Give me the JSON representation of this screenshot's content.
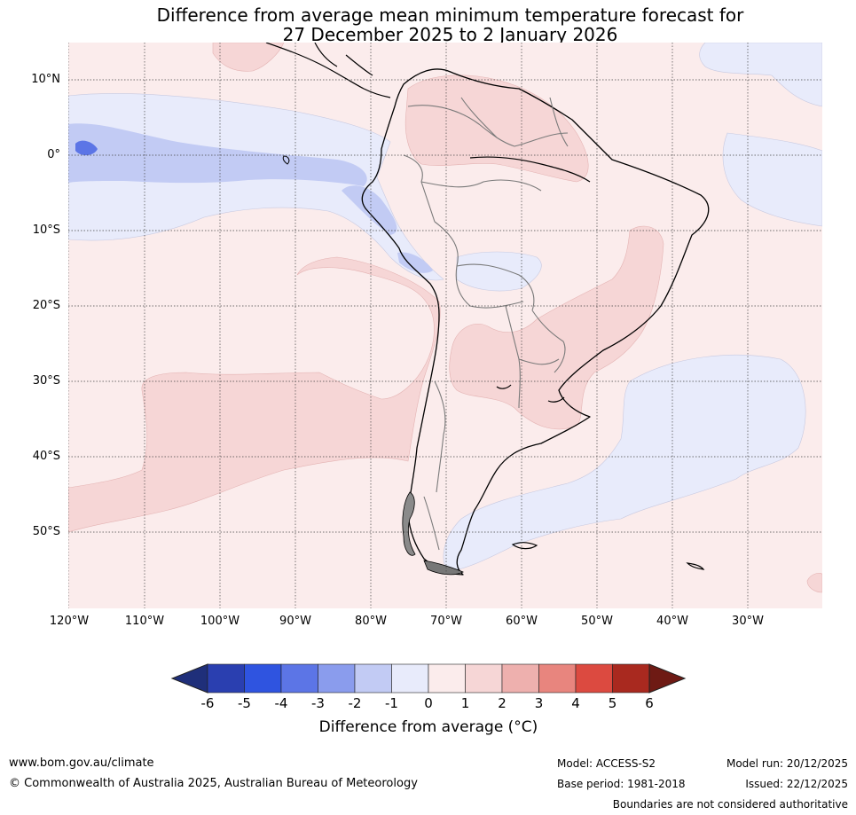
{
  "title": {
    "line1": "Difference from average mean minimum temperature forecast for",
    "line2": "27 December 2025 to 2 January 2026"
  },
  "axes": {
    "lat_labels": [
      "10°N",
      "0°",
      "10°S",
      "20°S",
      "30°S",
      "40°S",
      "50°S"
    ],
    "lon_labels": [
      "120°W",
      "110°W",
      "100°W",
      "90°W",
      "80°W",
      "70°W",
      "60°W",
      "50°W",
      "40°W",
      "30°W"
    ]
  },
  "colorbar": {
    "title": "Difference from average (°C)",
    "ticks": [
      "-6",
      "-5",
      "-4",
      "-3",
      "-2",
      "-1",
      "0",
      "1",
      "2",
      "3",
      "4",
      "5",
      "6"
    ],
    "colors": [
      "#2a3fb0",
      "#2f54e0",
      "#5c75e6",
      "#8a9ced",
      "#c2cbf4",
      "#e8ebfb",
      "#fbecec",
      "#f6d6d6",
      "#eeb0ae",
      "#e8857e",
      "#dc4a40",
      "#a9291f"
    ],
    "low_extend_color": "#1f2f7a",
    "high_extend_color": "#6e1a14"
  },
  "footer": {
    "website": "www.bom.gov.au/climate",
    "copyright": "© Commonwealth of Australia 2025, Australian Bureau of Meteorology",
    "model": "Model: ACCESS-S2",
    "base_period": "Base period: 1981-2018",
    "model_run": "Model run: 20/12/2025",
    "issued": "Issued: 22/12/2025",
    "disclaimer": "Boundaries are not considered authoritative"
  }
}
